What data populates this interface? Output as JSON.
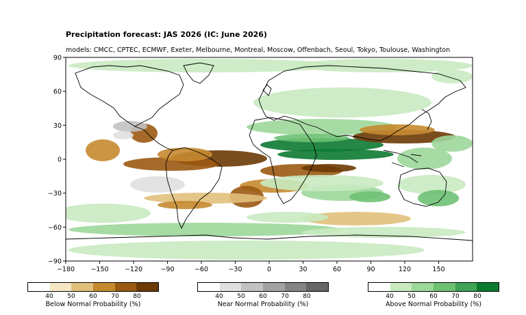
{
  "map": {
    "title": "Precipitation forecast: JAS 2026 (IC: June 2026)",
    "subtitle": "models: CMCC, CPTEC, ECMWF, Exeter, Melbourne, Montreal, Moscow, Offenbach, Seoul, Tokyo, Toulouse, Washington",
    "x_ticks": [
      "−180",
      "−150",
      "−120",
      "−90",
      "−60",
      "−30",
      "0",
      "30",
      "60",
      "90",
      "120",
      "150"
    ],
    "x_tick_values": [
      -180,
      -150,
      -120,
      -90,
      -60,
      -30,
      0,
      30,
      60,
      90,
      120,
      150
    ],
    "y_ticks": [
      "90",
      "60",
      "30",
      "0",
      "−30",
      "−60",
      "−90"
    ],
    "y_tick_values": [
      90,
      60,
      30,
      0,
      -30,
      -60,
      -90
    ],
    "xlim": [
      -180,
      180
    ],
    "ylim": [
      -90,
      90
    ]
  },
  "colorbars": [
    {
      "label": "Below Normal Probability (%)",
      "ticks": [
        "40",
        "50",
        "60",
        "70",
        "80"
      ],
      "colors": [
        "#ffffff",
        "#f5e6c4",
        "#e2c07c",
        "#c58930",
        "#9b5a12",
        "#6b3a06"
      ]
    },
    {
      "label": "Near Normal Probability (%)",
      "ticks": [
        "40",
        "50",
        "60",
        "70",
        "80"
      ],
      "colors": [
        "#ffffff",
        "#e0e0e0",
        "#c2c2c2",
        "#a3a3a3",
        "#858585",
        "#666666"
      ]
    },
    {
      "label": "Above Normal Probability (%)",
      "ticks": [
        "40",
        "50",
        "60",
        "70",
        "80"
      ],
      "colors": [
        "#ffffff",
        "#c9eac1",
        "#9dd79a",
        "#6ec173",
        "#3fa254",
        "#0d7a31"
      ]
    }
  ]
}
